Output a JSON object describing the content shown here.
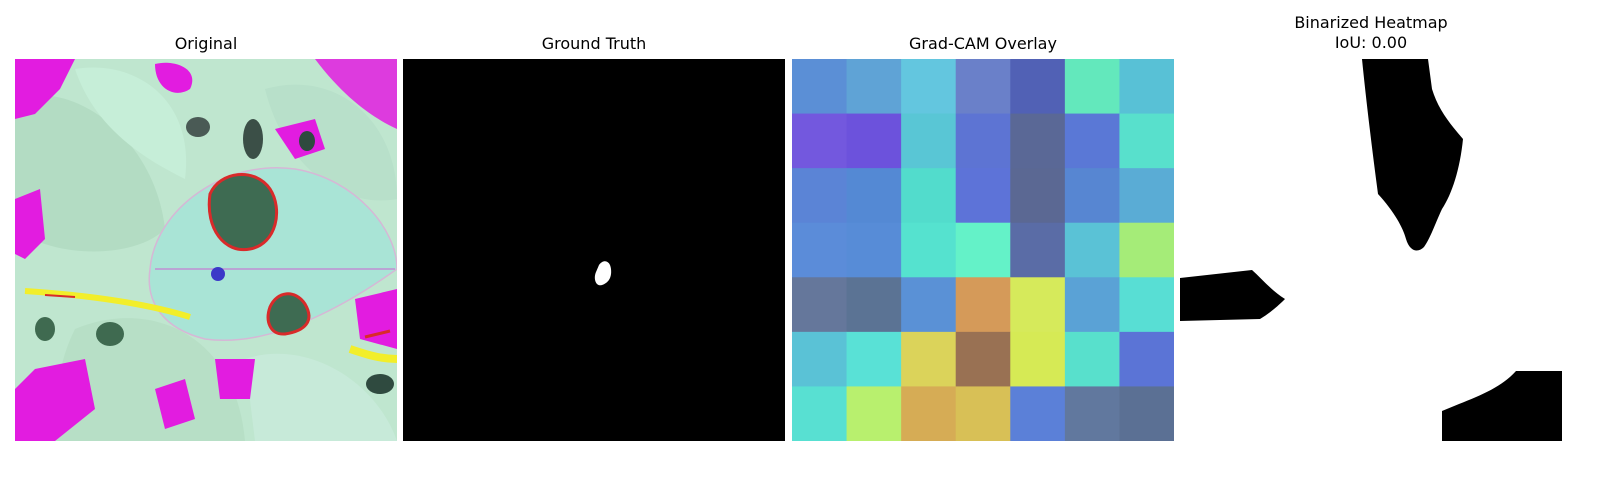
{
  "panels": [
    {
      "title": "Original"
    },
    {
      "title": "Ground Truth"
    },
    {
      "title": "Grad-CAM Overlay"
    },
    {
      "title": "Binarized Heatmap",
      "subtitle": "IoU: 0.00"
    }
  ],
  "gradcam_grid": {
    "rows": 7,
    "cols": 7,
    "colors": [
      [
        "#5b8fd6",
        "#5fa3d6",
        "#63c6df",
        "#6a80c9",
        "#5161b5",
        "#63e8bc",
        "#58c1d6"
      ],
      [
        "#7358de",
        "#6c52dc",
        "#59c6d5",
        "#5d74d3",
        "#5a6896",
        "#5a78d6",
        "#58e0cc"
      ],
      [
        "#5b84d6",
        "#5489d4",
        "#52dccc",
        "#5d73d8",
        "#5b6893",
        "#5786d2",
        "#5aacd5"
      ],
      [
        "#5b8cd9",
        "#578cd7",
        "#55e2cf",
        "#64f2c8",
        "#5a6ca6",
        "#5ac2d6",
        "#a5ec78"
      ],
      [
        "#65779b",
        "#5b7394",
        "#5a91d6",
        "#d59a59",
        "#d6ea5b",
        "#5aa2d6",
        "#58ded4"
      ],
      [
        "#5ac2d6",
        "#59e1d6",
        "#dbd35a",
        "#997153",
        "#d6ea55",
        "#58e0cc",
        "#5b74d6"
      ],
      [
        "#58e0d2",
        "#b8f06e",
        "#d6ac55",
        "#d8c056",
        "#5b80d8",
        "#61789e",
        "#5b7094"
      ]
    ]
  },
  "colors": {
    "leaf_base": "#c0e8d0",
    "lesion_dark": "#3e6b52",
    "lesion_edge": "#d92a2a",
    "magenta": "#e21ce0",
    "yellow": "#f2ee2a",
    "mask_bg": "#000000",
    "mask_fg": "#ffffff"
  }
}
